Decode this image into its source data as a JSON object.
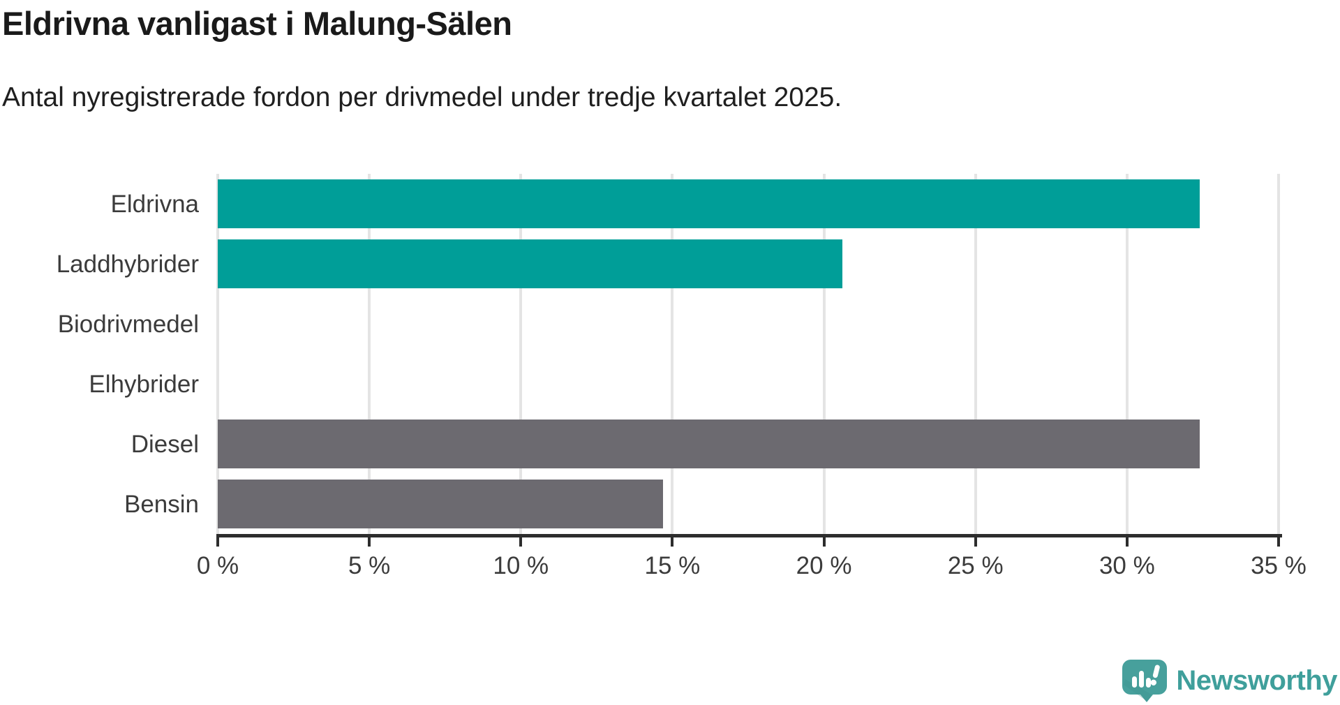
{
  "header": {
    "title": "Eldrivna vanligast i Malung-Sälen",
    "subtitle": "Antal nyregistrerade fordon per drivmedel under tredje kvartalet 2025."
  },
  "chart_data": {
    "type": "bar",
    "orientation": "horizontal",
    "title": "Eldrivna vanligast i Malung-Sälen",
    "subtitle": "Antal nyregistrerade fordon per drivmedel under tredje kvartalet 2025.",
    "categories": [
      "Eldrivna",
      "Laddhybrider",
      "Biodrivmedel",
      "Elhybrider",
      "Diesel",
      "Bensin"
    ],
    "values": [
      32.4,
      20.6,
      0,
      0,
      32.4,
      14.7
    ],
    "unit": "%",
    "bar_colors": [
      "#009e98",
      "#009e98",
      "#009e98",
      "#009e98",
      "#6c6a70",
      "#6c6a70"
    ],
    "xlim": [
      0,
      35
    ],
    "xticks": [
      0,
      5,
      10,
      15,
      20,
      25,
      30,
      35
    ],
    "xtick_labels": [
      "0 %",
      "5 %",
      "10 %",
      "15 %",
      "20 %",
      "25 %",
      "30 %",
      "35 %"
    ],
    "grid": true,
    "legend": "none"
  },
  "branding": {
    "logo_text": "Newsworthy",
    "logo_color": "#3f9f9b",
    "icon_color": "#47a09c"
  },
  "colors": {
    "teal": "#009e98",
    "gray": "#6c6a70",
    "gridline": "#e4e4e4",
    "axis": "#2d2d2d",
    "text_dark": "#1a1a1a",
    "text_label": "#3b3b3b"
  }
}
